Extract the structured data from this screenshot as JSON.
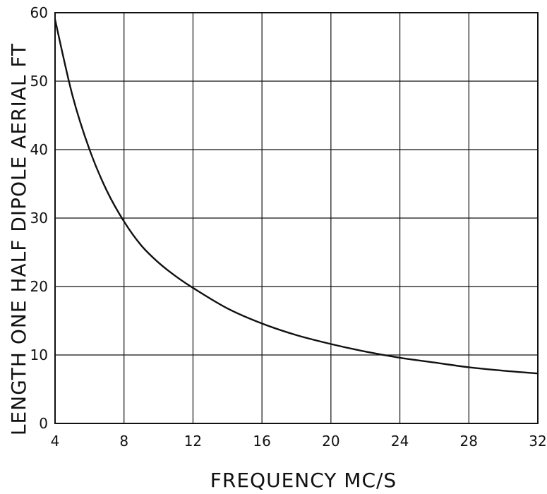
{
  "chart_data": {
    "type": "line",
    "xlabel": "FREQUENCY MC/S",
    "ylabel": "LENGTH ONE HALF DIPOLE AERIAL FT",
    "xlim": [
      4,
      32
    ],
    "ylim": [
      0,
      60
    ],
    "x_ticks": [
      "4",
      "8",
      "12",
      "16",
      "20",
      "24",
      "28",
      "32"
    ],
    "y_ticks": [
      "0",
      "10",
      "20",
      "30",
      "40",
      "50",
      "60"
    ],
    "grid": true,
    "series": [
      {
        "x": [
          4,
          5,
          6,
          7,
          8,
          9,
          10,
          11,
          12,
          14,
          16,
          18,
          20,
          22,
          24,
          26,
          28,
          30,
          32
        ],
        "y": [
          59,
          48,
          40,
          34,
          29.5,
          26,
          23.5,
          21.5,
          19.8,
          16.8,
          14.6,
          12.9,
          11.6,
          10.5,
          9.6,
          8.9,
          8.2,
          7.7,
          7.3
        ]
      }
    ],
    "colors": {
      "line": "#111111",
      "grid": "#111111",
      "background": "#ffffff"
    }
  }
}
